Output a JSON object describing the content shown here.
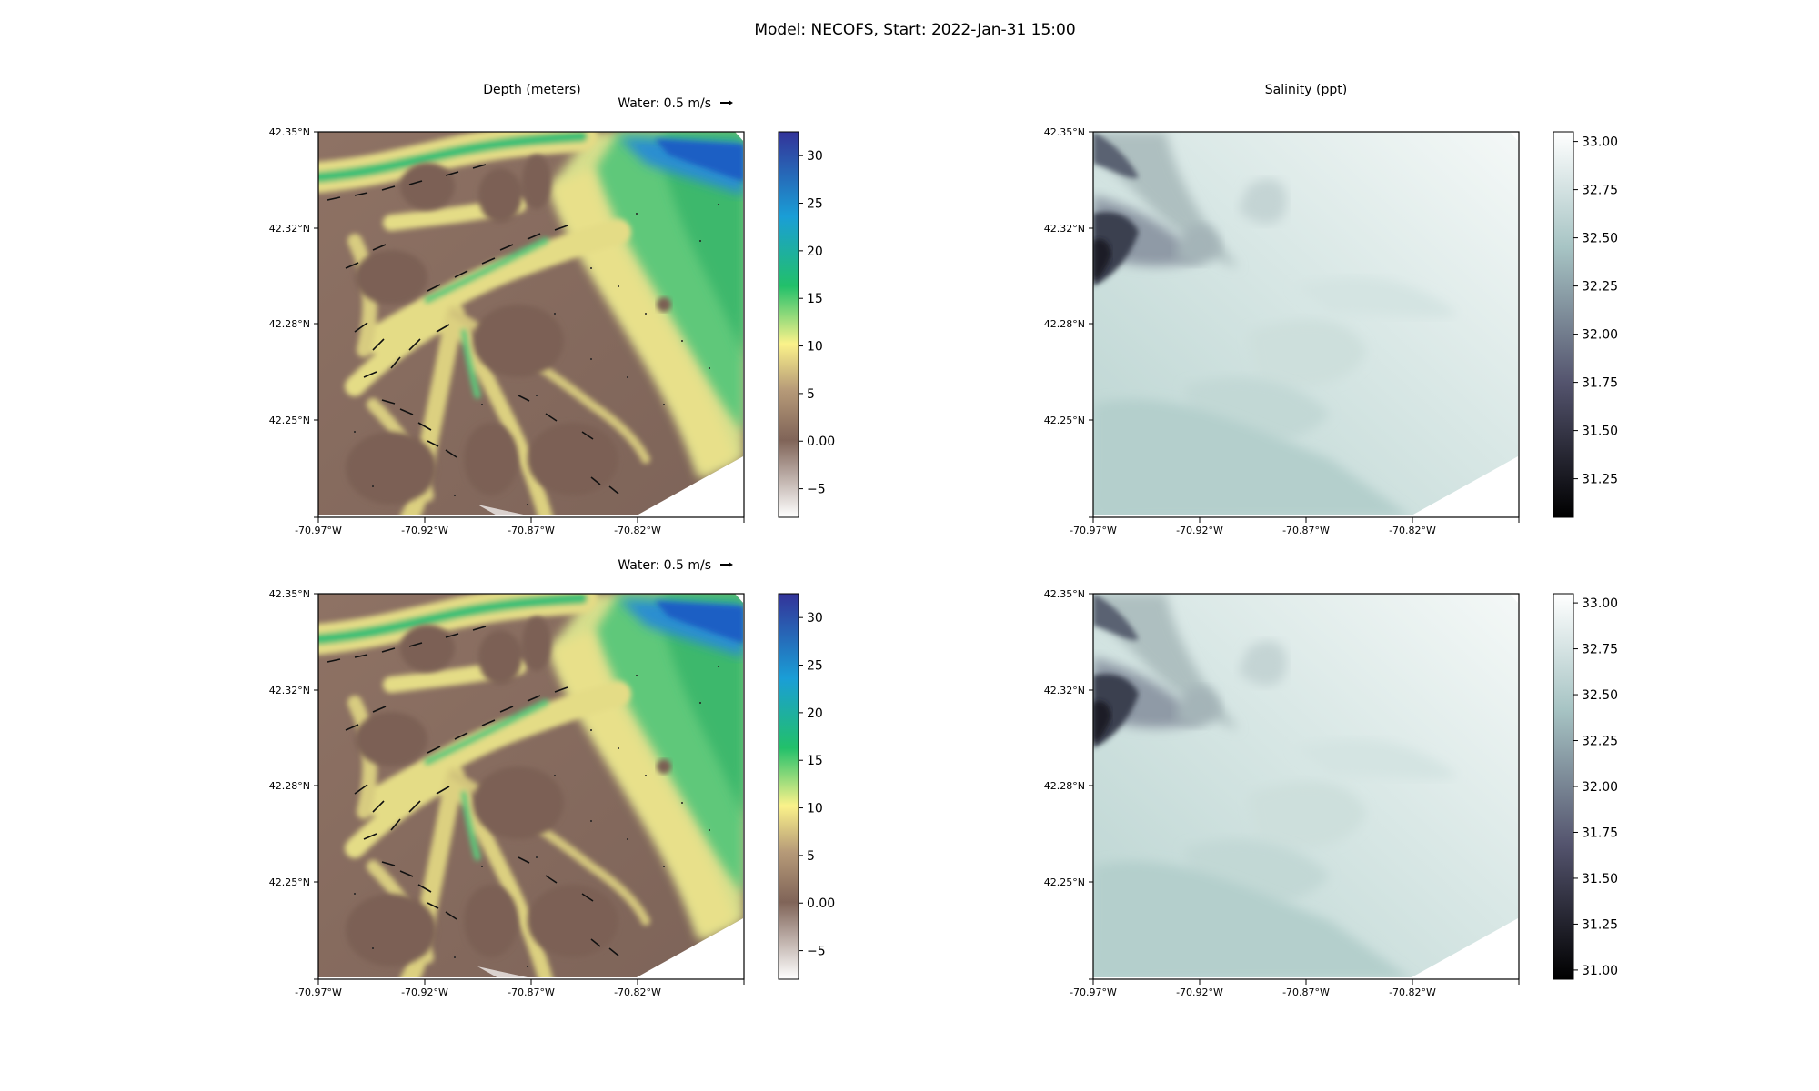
{
  "suptitle": "Model: NECOFS, Start: 2022-Jan-31 15:00",
  "columns": {
    "depth_title": "Depth (meters)",
    "salinity_title": "Salinity (ppt)"
  },
  "quiver_key": "Water: 0.5 m/s",
  "lat_ticks": [
    "42.35°N",
    "42.32°N",
    "42.28°N",
    "42.25°N"
  ],
  "lon_ticks": [
    "-70.97°W",
    "-70.92°W",
    "-70.87°W",
    "-70.82°W"
  ],
  "colors": {
    "deep_water": "#1a55c0",
    "shallow_green": "#22b870",
    "sand": "#e6dc8c",
    "land": "#8a6f60",
    "salinity_high": "#f4f7f6",
    "salinity_mid": "#c6dbd7",
    "salinity_low": "#2a2a3a"
  },
  "chart_data": [
    {
      "type": "heatmap",
      "panel": "top-left",
      "title": "Depth (meters)",
      "quiver_key": "Water: 0.5 m/s",
      "colormap": "terrain",
      "colorbar_ticks": [
        -5,
        0,
        5,
        10,
        15,
        20,
        25,
        30
      ],
      "colorbar_range": [
        -8,
        32.5
      ],
      "lat_range": [
        42.22,
        42.35
      ],
      "lon_range": [
        -70.97,
        -70.77
      ]
    },
    {
      "type": "heatmap",
      "panel": "top-right",
      "title": "Salinity (ppt)",
      "colormap": "bone",
      "colorbar_ticks": [
        31.25,
        31.5,
        31.75,
        32.0,
        32.25,
        32.5,
        32.75,
        33.0
      ],
      "colorbar_range": [
        31.05,
        33.05
      ],
      "lat_range": [
        42.22,
        42.35
      ],
      "lon_range": [
        -70.97,
        -70.77
      ]
    },
    {
      "type": "heatmap",
      "panel": "bottom-left",
      "quiver_key": "Water: 0.5 m/s",
      "colormap": "terrain",
      "colorbar_ticks": [
        -5,
        0,
        5,
        10,
        15,
        20,
        25,
        30
      ],
      "colorbar_range": [
        -8,
        32.5
      ],
      "lat_range": [
        42.22,
        42.35
      ],
      "lon_range": [
        -70.97,
        -70.77
      ]
    },
    {
      "type": "heatmap",
      "panel": "bottom-right",
      "colormap": "bone",
      "colorbar_ticks": [
        31.0,
        31.25,
        31.5,
        31.75,
        32.0,
        32.25,
        32.5,
        32.75,
        33.0
      ],
      "colorbar_range": [
        30.95,
        33.05
      ],
      "lat_range": [
        42.22,
        42.35
      ],
      "lon_range": [
        -70.97,
        -70.77
      ]
    }
  ]
}
